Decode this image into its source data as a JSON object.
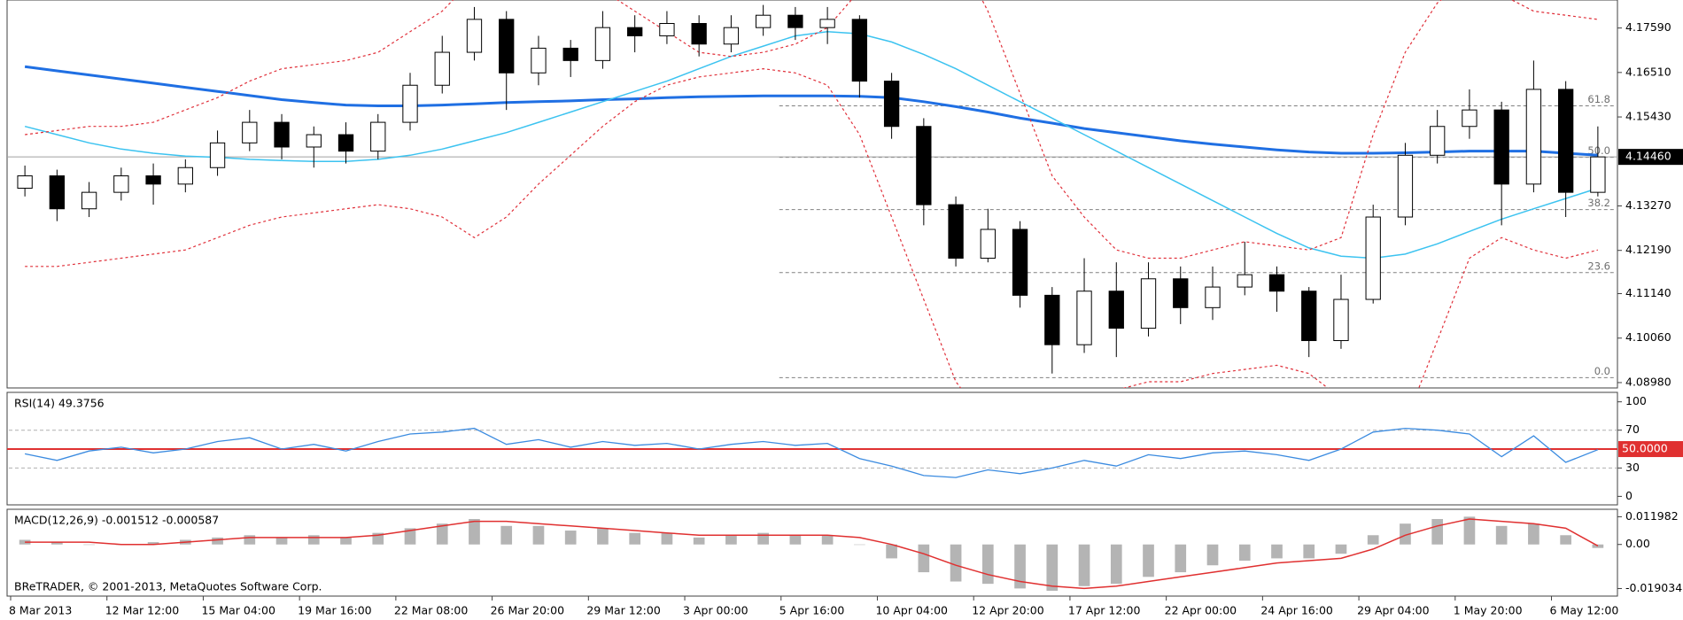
{
  "chart_data": [
    {
      "type": "candlestick",
      "categories": [
        "8 Mar 2013",
        null,
        null,
        "12 Mar 12:00",
        null,
        null,
        "15 Mar 04:00",
        null,
        null,
        "19 Mar 16:00",
        null,
        null,
        "22 Mar 08:00",
        null,
        null,
        "26 Mar 20:00",
        null,
        null,
        "29 Mar 12:00",
        null,
        null,
        "3 Apr 00:00",
        null,
        null,
        "5 Apr 16:00",
        null,
        null,
        "10 Apr 04:00",
        null,
        null,
        "12 Apr 20:00",
        null,
        null,
        "17 Apr 12:00",
        null,
        null,
        "22 Apr 00:00",
        null,
        null,
        "24 Apr 16:00",
        null,
        null,
        "29 Apr 04:00",
        null,
        null,
        "1 May 20:00",
        null,
        null,
        "6 May 12:00",
        null
      ],
      "open": [
        4.137,
        4.14,
        4.132,
        4.136,
        4.14,
        4.138,
        4.142,
        4.148,
        4.153,
        4.147,
        4.15,
        4.146,
        4.153,
        4.162,
        4.17,
        4.178,
        4.165,
        4.171,
        4.168,
        4.176,
        4.174,
        4.177,
        4.172,
        4.176,
        4.179,
        4.176,
        4.178,
        4.163,
        4.152,
        4.133,
        4.12,
        4.127,
        4.111,
        4.099,
        4.112,
        4.103,
        4.115,
        4.108,
        4.113,
        4.116,
        4.112,
        4.1,
        4.11,
        4.13,
        4.145,
        4.152,
        4.156,
        4.138,
        4.161,
        4.136
      ],
      "high": [
        4.1425,
        4.1415,
        4.1385,
        4.142,
        4.143,
        4.144,
        4.151,
        4.156,
        4.155,
        4.152,
        4.153,
        4.155,
        4.165,
        4.174,
        4.181,
        4.18,
        4.174,
        4.173,
        4.18,
        4.179,
        4.18,
        4.179,
        4.179,
        4.1815,
        4.181,
        4.181,
        4.179,
        4.165,
        4.154,
        4.135,
        4.132,
        4.129,
        4.113,
        4.12,
        4.119,
        4.119,
        4.118,
        4.118,
        4.124,
        4.118,
        4.113,
        4.116,
        4.133,
        4.148,
        4.156,
        4.161,
        4.158,
        4.168,
        4.163,
        4.152
      ],
      "low": [
        4.135,
        4.129,
        4.13,
        4.134,
        4.133,
        4.136,
        4.14,
        4.146,
        4.144,
        4.142,
        4.143,
        4.144,
        4.151,
        4.16,
        4.168,
        4.156,
        4.162,
        4.164,
        4.166,
        4.17,
        4.172,
        4.169,
        4.17,
        4.174,
        4.173,
        4.172,
        4.159,
        4.149,
        4.128,
        4.118,
        4.119,
        4.108,
        4.092,
        4.097,
        4.096,
        4.101,
        4.104,
        4.105,
        4.111,
        4.107,
        4.096,
        4.098,
        4.109,
        4.128,
        4.143,
        4.149,
        4.128,
        4.136,
        4.13,
        4.135
      ],
      "close": [
        4.14,
        4.132,
        4.136,
        4.14,
        4.138,
        4.142,
        4.148,
        4.153,
        4.147,
        4.15,
        4.146,
        4.153,
        4.162,
        4.17,
        4.178,
        4.165,
        4.171,
        4.168,
        4.176,
        4.174,
        4.177,
        4.172,
        4.176,
        4.179,
        4.176,
        4.178,
        4.163,
        4.152,
        4.133,
        4.12,
        4.127,
        4.111,
        4.099,
        4.112,
        4.103,
        4.115,
        4.108,
        4.113,
        4.116,
        4.112,
        4.1,
        4.11,
        4.13,
        4.145,
        4.152,
        4.156,
        4.138,
        4.161,
        4.136,
        4.1446
      ],
      "candle_color": "#000000",
      "ylim": [
        4.0885,
        4.1827
      ],
      "yticks": [
        {
          "value": 4.1759,
          "label": "4.17590"
        },
        {
          "value": 4.1651,
          "label": "4.16510"
        },
        {
          "value": 4.1543,
          "label": "4.15430"
        },
        {
          "value": 4.1327,
          "label": "4.13270"
        },
        {
          "value": 4.1219,
          "label": "4.12190"
        },
        {
          "value": 4.1114,
          "label": "4.11140"
        },
        {
          "value": 4.1006,
          "label": "4.10060"
        },
        {
          "value": 4.0898,
          "label": "4.08980"
        }
      ],
      "current_price": {
        "value": 4.1446,
        "label": "4.14460"
      },
      "fib_levels": [
        {
          "value": 4.091,
          "label": "0.0"
        },
        {
          "value": 4.1165,
          "label": "23.6"
        },
        {
          "value": 4.1318,
          "label": "38.2"
        },
        {
          "value": 4.1445,
          "label": "50.0"
        },
        {
          "value": 4.157,
          "label": "61.8"
        }
      ],
      "overlays": [
        {
          "color": "#1f6fe3",
          "width": 3,
          "dashed": false,
          "values": [
            4.1665,
            4.1655,
            4.1645,
            4.1635,
            4.1625,
            4.1615,
            4.1605,
            4.1595,
            4.1585,
            4.1578,
            4.1572,
            4.157,
            4.157,
            4.1572,
            4.1575,
            4.1578,
            4.158,
            4.1582,
            4.1585,
            4.1587,
            4.159,
            4.1592,
            4.1593,
            4.1594,
            4.1594,
            4.1594,
            4.1593,
            4.159,
            4.158,
            4.1568,
            4.1555,
            4.154,
            4.1528,
            4.1515,
            4.1505,
            4.1495,
            4.1485,
            4.1477,
            4.147,
            4.1463,
            4.1458,
            4.1455,
            4.1455,
            4.1456,
            4.1458,
            4.146,
            4.146,
            4.146,
            4.1455,
            4.145
          ]
        },
        {
          "color": "#3cc3f0",
          "width": 1.5,
          "dashed": false,
          "values": [
            4.152,
            4.15,
            4.148,
            4.1465,
            4.1455,
            4.1448,
            4.1445,
            4.144,
            4.1437,
            4.1435,
            4.1435,
            4.144,
            4.145,
            4.1465,
            4.1485,
            4.1505,
            4.153,
            4.1555,
            4.158,
            4.1605,
            4.163,
            4.166,
            4.169,
            4.1715,
            4.174,
            4.175,
            4.1745,
            4.1725,
            4.1695,
            4.166,
            4.162,
            4.158,
            4.154,
            4.15,
            4.146,
            4.142,
            4.138,
            4.134,
            4.13,
            4.126,
            4.1225,
            4.1205,
            4.12,
            4.121,
            4.1235,
            4.1265,
            4.1295,
            4.132,
            4.1345,
            4.137
          ]
        },
        {
          "color": "#e0303a",
          "width": 1.2,
          "dashed": true,
          "values": [
            4.15,
            4.151,
            4.152,
            4.152,
            4.153,
            4.156,
            4.159,
            4.163,
            4.166,
            4.167,
            4.168,
            4.17,
            4.175,
            4.18,
            4.188,
            4.19,
            4.19,
            4.188,
            4.185,
            4.18,
            4.175,
            4.17,
            4.169,
            4.17,
            4.172,
            4.176,
            4.185,
            4.195,
            4.2,
            4.195,
            4.18,
            4.16,
            4.14,
            4.13,
            4.122,
            4.12,
            4.12,
            4.122,
            4.124,
            4.123,
            4.122,
            4.125,
            4.15,
            4.17,
            4.182,
            4.188,
            4.184,
            4.18,
            4.179,
            4.178
          ]
        },
        {
          "color": "#e0303a",
          "width": 1.2,
          "dashed": true,
          "values": [
            4.118,
            4.118,
            4.119,
            4.12,
            4.121,
            4.122,
            4.125,
            4.128,
            4.13,
            4.131,
            4.132,
            4.133,
            4.132,
            4.13,
            4.125,
            4.13,
            4.138,
            4.145,
            4.152,
            4.158,
            4.162,
            4.164,
            4.165,
            4.166,
            4.165,
            4.162,
            4.15,
            4.13,
            4.11,
            4.09,
            4.08,
            4.075,
            4.08,
            4.085,
            4.088,
            4.09,
            4.09,
            4.092,
            4.093,
            4.094,
            4.092,
            4.086,
            4.08,
            4.08,
            4.1,
            4.12,
            4.125,
            4.122,
            4.12,
            4.122
          ]
        }
      ]
    },
    {
      "type": "line",
      "title": "RSI(14) 49.3756",
      "values": [
        45,
        38,
        48,
        52,
        46,
        50,
        58,
        62,
        50,
        55,
        48,
        58,
        66,
        68,
        72,
        55,
        60,
        52,
        58,
        54,
        56,
        50,
        55,
        58,
        54,
        56,
        40,
        32,
        22,
        20,
        28,
        24,
        30,
        38,
        32,
        44,
        40,
        46,
        48,
        44,
        38,
        50,
        68,
        72,
        70,
        66,
        42,
        64,
        36,
        49.3756
      ],
      "color": "#3b8be0",
      "ylim": [
        -9,
        110
      ],
      "yticks": [
        0,
        30,
        70,
        100
      ],
      "levels": [
        30,
        70
      ],
      "mid_level": {
        "value": 50,
        "label": "50.0000"
      },
      "mid_color": "#e03030"
    },
    {
      "type": "macd",
      "title": "MACD(12,26,9) -0.001512 -0.000587",
      "values": [
        0.002,
        0.001,
        0,
        0,
        0.001,
        0.002,
        0.003,
        0.004,
        0.003,
        0.004,
        0.003,
        0.005,
        0.007,
        0.009,
        0.011,
        0.008,
        0.008,
        0.006,
        0.007,
        0.005,
        0.005,
        0.003,
        0.004,
        0.005,
        0.004,
        0.004,
        0,
        -0.006,
        -0.012,
        -0.016,
        -0.017,
        -0.019,
        -0.02,
        -0.018,
        -0.017,
        -0.014,
        -0.012,
        -0.009,
        -0.007,
        -0.006,
        -0.006,
        -0.004,
        0.004,
        0.009,
        0.011,
        0.012,
        0.008,
        0.009,
        0.004,
        -0.001512
      ],
      "color": "#b4b4b4",
      "signal": [
        0.001,
        0.001,
        0.001,
        0,
        0,
        0.001,
        0.002,
        0.003,
        0.003,
        0.003,
        0.003,
        0.004,
        0.006,
        0.008,
        0.01,
        0.01,
        0.009,
        0.008,
        0.007,
        0.006,
        0.005,
        0.004,
        0.004,
        0.004,
        0.004,
        0.004,
        0.003,
        0,
        -0.004,
        -0.009,
        -0.013,
        -0.016,
        -0.018,
        -0.019,
        -0.018,
        -0.016,
        -0.014,
        -0.012,
        -0.01,
        -0.008,
        -0.007,
        -0.006,
        -0.002,
        0.004,
        0.008,
        0.011,
        0.01,
        0.009,
        0.007,
        -0.000587
      ],
      "signal_color": "#e03030",
      "ylim": [
        -0.0223,
        0.0152
      ],
      "yticks": [
        0.011982,
        {
          "value": 0,
          "label": "0.00"
        },
        -0.019034
      ],
      "footer": "BReTRADER, © 2001-2013, MetaQuotes Software Corp."
    }
  ]
}
